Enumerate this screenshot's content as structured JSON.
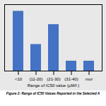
{
  "chart_data": {
    "type": "bar",
    "categories": [
      "<10",
      "(11-20)",
      "(21-30)",
      "(31-40)",
      "mor"
    ],
    "values": [
      9,
      4,
      7,
      1.5,
      1.5
    ],
    "color": "#4472C4",
    "xlabel": "Range of IC50 value (μM/l )",
    "caption": "Figure 2: Range of IC50 Values Reported in the Selected A",
    "ylim": [
      0,
      10
    ],
    "grid": false,
    "tick_labels": "x"
  }
}
